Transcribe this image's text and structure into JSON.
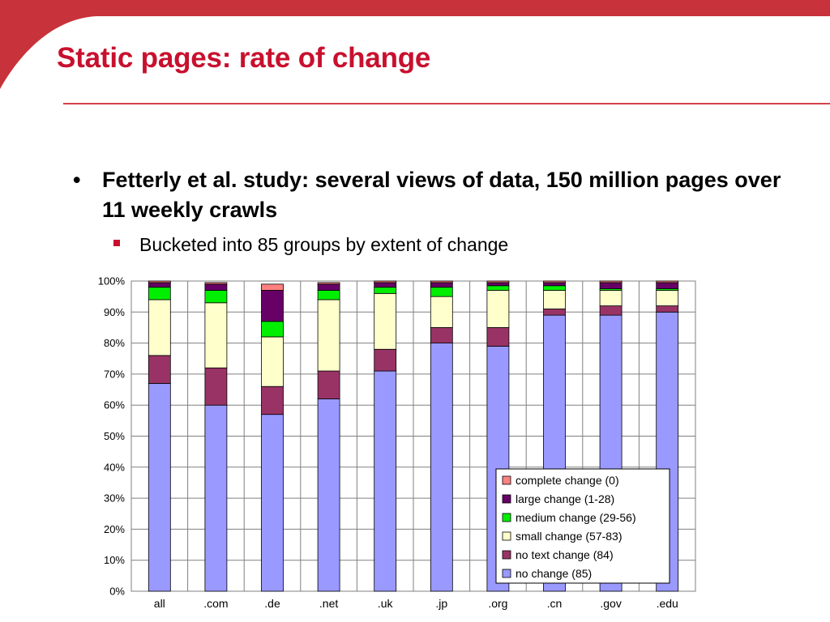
{
  "slide": {
    "title": "Static pages: rate of change",
    "bullets": [
      {
        "text": "Fetterly et al. study: several views of data, 150 million pages over 11 weekly crawls"
      }
    ],
    "sub_bullets": [
      {
        "text": "Bucketed into 85 groups by extent of change"
      }
    ]
  },
  "colors": {
    "title": "#c8102e",
    "accent": "#d4424a"
  },
  "chart_data": {
    "type": "bar",
    "stacked": true,
    "categories": [
      "all",
      ".com",
      ".de",
      ".net",
      ".uk",
      ".jp",
      ".org",
      ".cn",
      ".gov",
      ".edu"
    ],
    "series": [
      {
        "name": "no change (85)",
        "color": "#9999ff",
        "values": [
          67,
          60,
          57,
          62,
          71,
          80,
          79,
          89,
          89,
          90
        ]
      },
      {
        "name": "no text change (84)",
        "color": "#993366",
        "values": [
          9,
          12,
          9,
          9,
          7,
          5,
          6,
          2,
          3,
          2
        ]
      },
      {
        "name": "small change (57-83)",
        "color": "#ffffcc",
        "values": [
          18,
          21,
          16,
          23,
          18,
          10,
          12,
          6,
          5,
          5
        ]
      },
      {
        "name": "medium change (29-56)",
        "color": "#00ee00",
        "values": [
          4,
          4,
          5,
          3,
          2,
          3,
          1.5,
          1.5,
          0.5,
          0.5
        ]
      },
      {
        "name": "large change (1-28)",
        "color": "#660066",
        "values": [
          1.5,
          2,
          10,
          2,
          1.5,
          1.5,
          1,
          1,
          2,
          2
        ]
      },
      {
        "name": "complete change (0)",
        "color": "#ff8080",
        "values": [
          0.5,
          0.5,
          2,
          0.5,
          0.5,
          0.5,
          0.5,
          0.5,
          0.5,
          0.5
        ]
      }
    ],
    "yticks": [
      "0%",
      "10%",
      "20%",
      "30%",
      "40%",
      "50%",
      "60%",
      "70%",
      "80%",
      "90%",
      "100%"
    ],
    "ylim": [
      0,
      100
    ],
    "grid": true,
    "legend": "bottom-right",
    "legend_order": [
      "complete change (0)",
      "large change (1-28)",
      "medium change (29-56)",
      "small change (57-83)",
      "no text change (84)",
      "no change (85)"
    ]
  }
}
